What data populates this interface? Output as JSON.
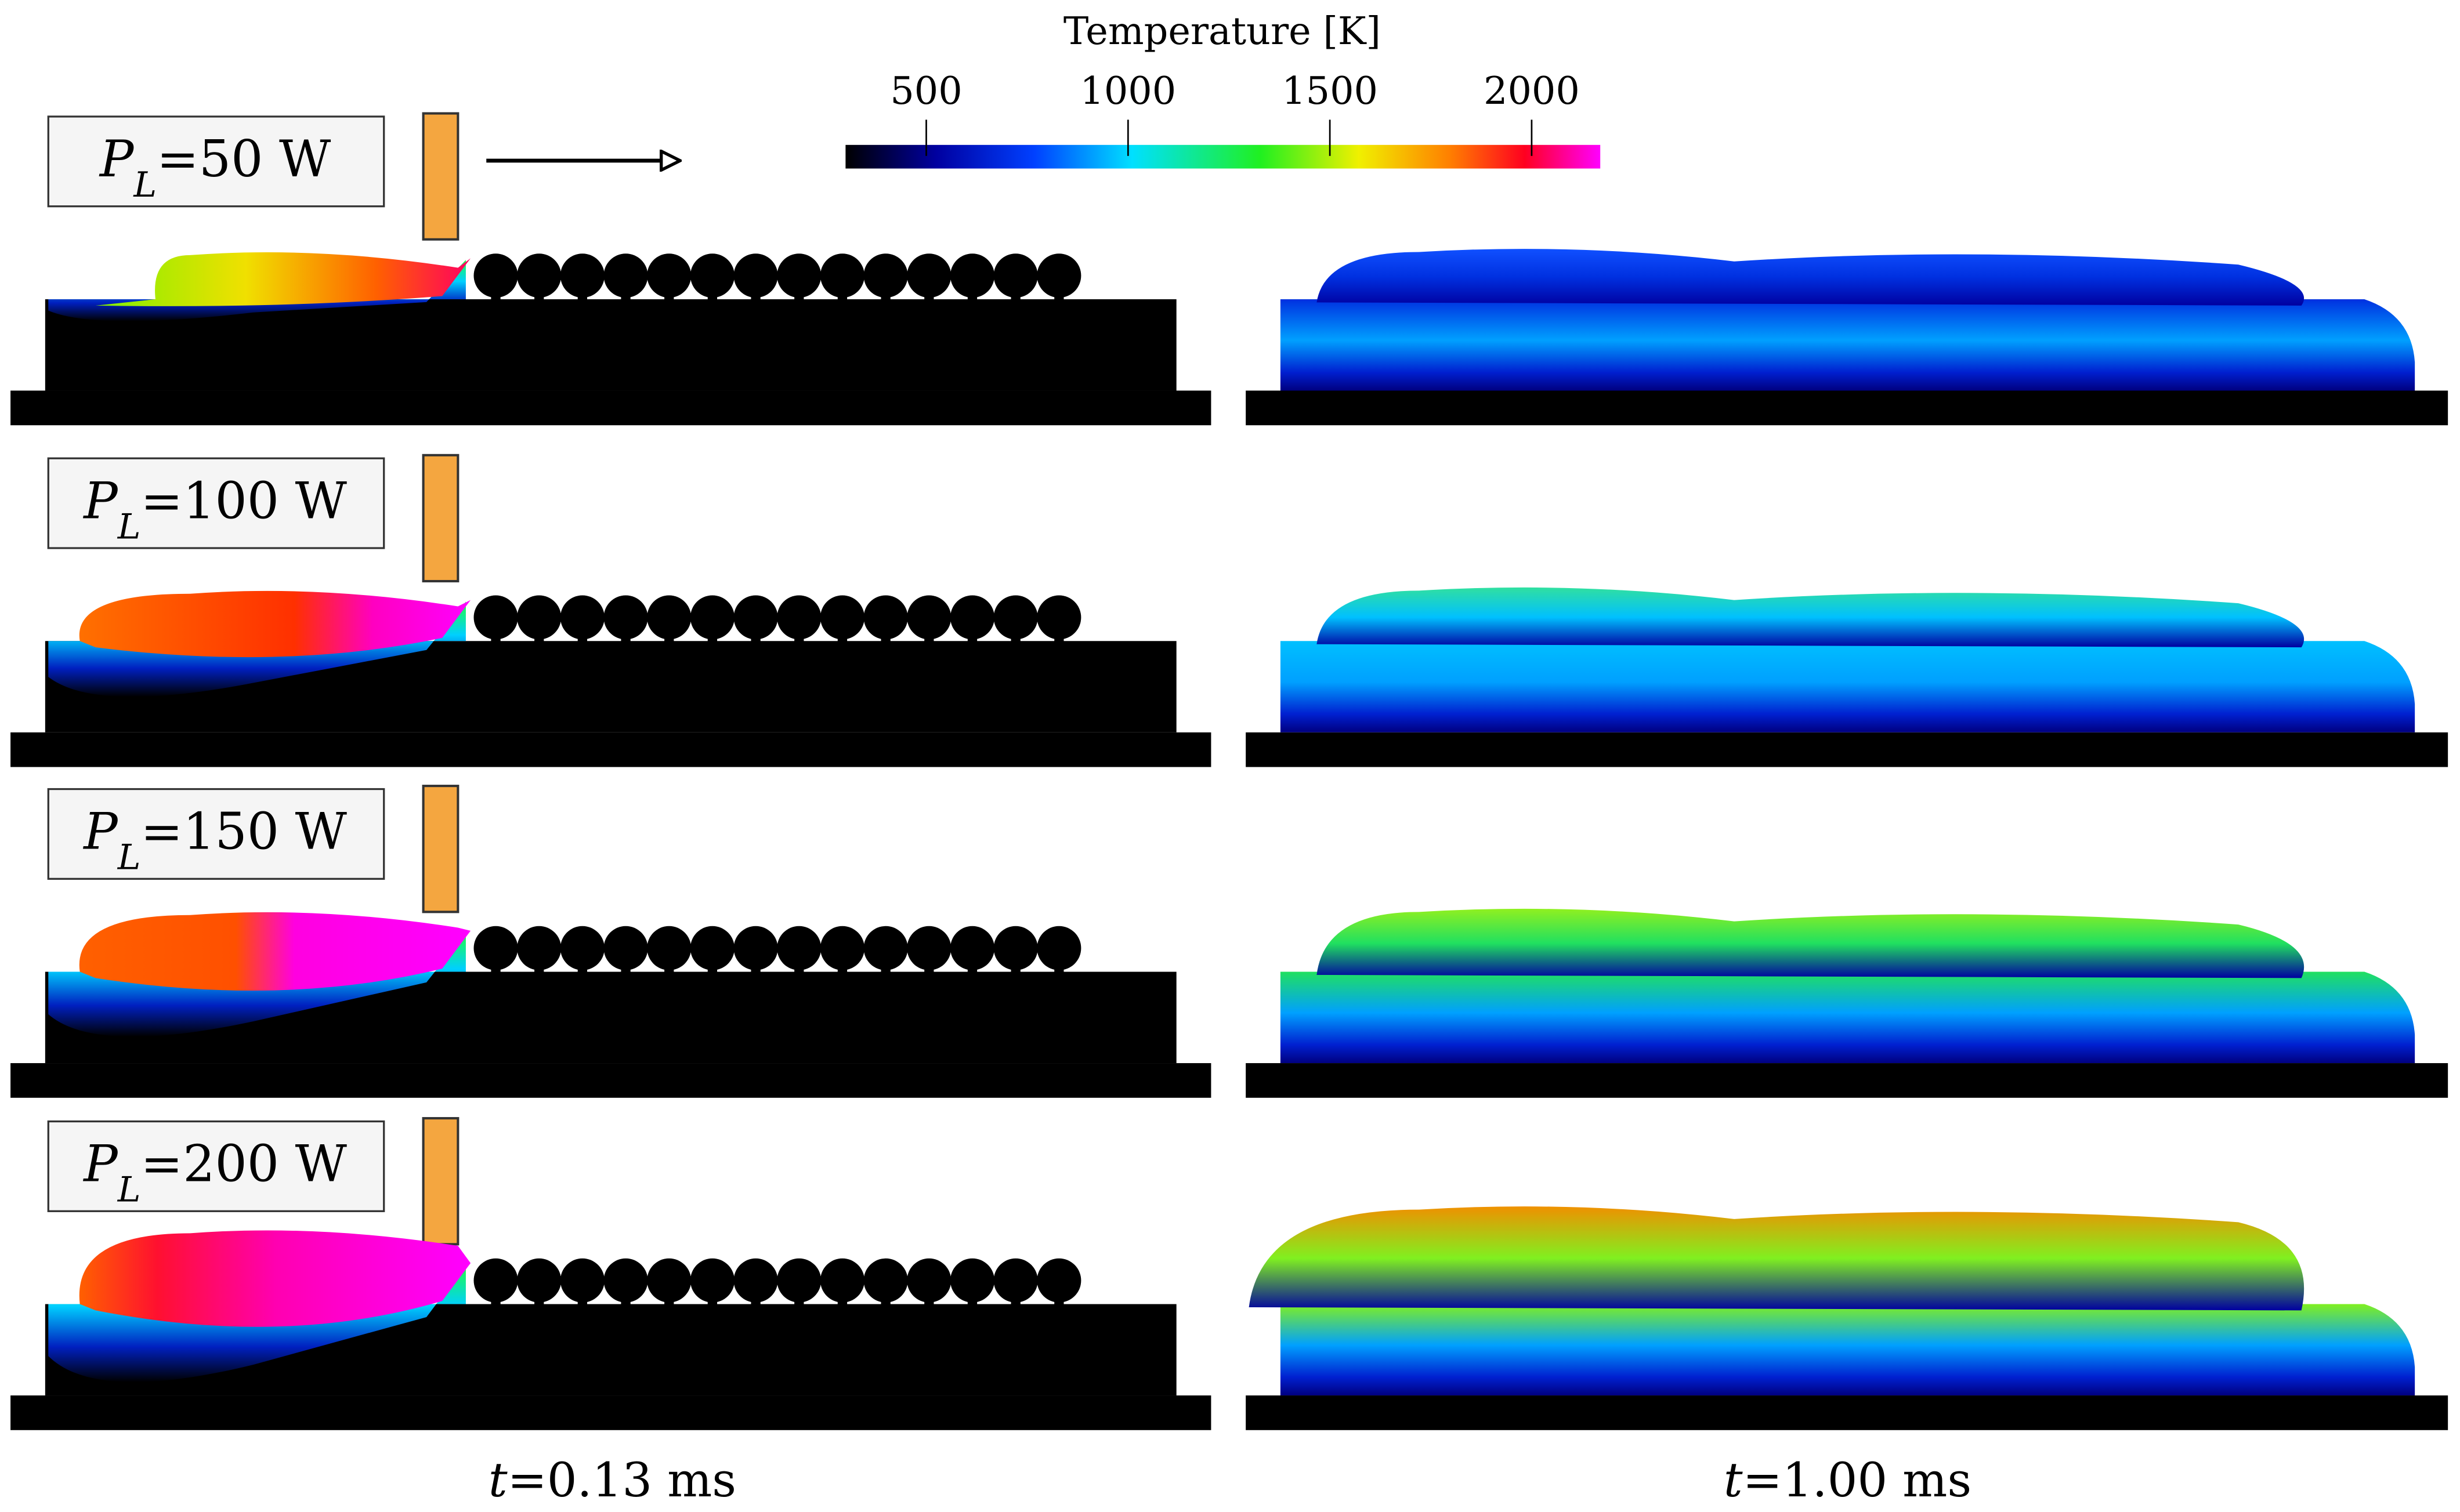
{
  "colorbar": {
    "title": "Temperature [K]",
    "range": [
      300,
      2170
    ],
    "ticks": [
      500,
      1000,
      1500,
      2000
    ]
  },
  "rows": [
    {
      "label": {
        "base": "P",
        "sub": "L",
        "rest": "=50 W"
      }
    },
    {
      "label": {
        "base": "P",
        "sub": "L",
        "rest": "=100 W"
      }
    },
    {
      "label": {
        "base": "P",
        "sub": "L",
        "rest": "=150 W"
      }
    },
    {
      "label": {
        "base": "P",
        "sub": "L",
        "rest": "=200 W"
      }
    }
  ],
  "time_labels": [
    {
      "base": "t",
      "rest": "=0.13 ms"
    },
    {
      "base": "t",
      "rest": "=1.00 ms"
    }
  ]
}
